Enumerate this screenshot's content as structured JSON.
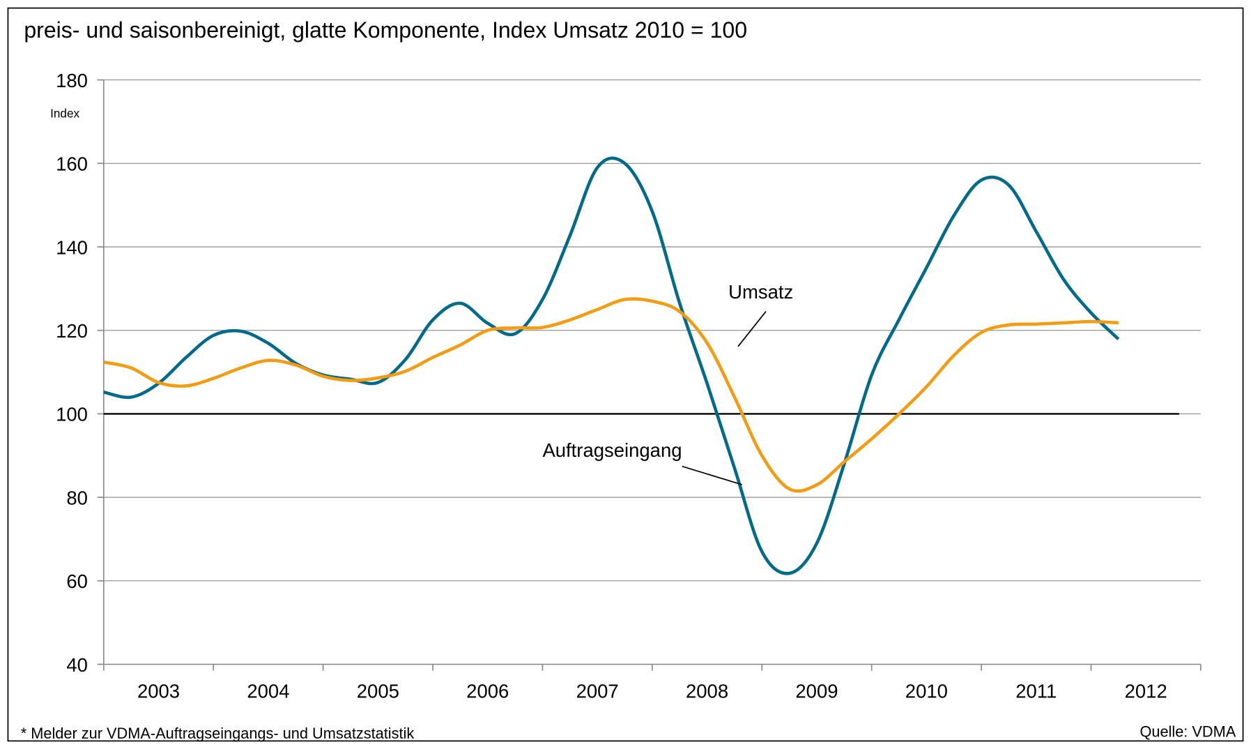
{
  "chart_data": {
    "type": "line",
    "title": "preis- und saisonbereinigt, glatte Komponente, Index Umsatz 2010 = 100",
    "y_label": "Index",
    "footnote": "* Melder zur VDMA-Auftragseingangs- und Umsatzstatistik",
    "source": "Quelle: VDMA",
    "categories": [
      "2003",
      "2004",
      "2005",
      "2006",
      "2007",
      "2008",
      "2009",
      "2010",
      "2011",
      "2012"
    ],
    "x": [
      2003,
      2003.25,
      2003.5,
      2003.75,
      2004,
      2004.25,
      2004.5,
      2004.75,
      2005,
      2005.25,
      2005.5,
      2005.75,
      2006,
      2006.25,
      2006.5,
      2006.75,
      2007,
      2007.25,
      2007.5,
      2007.75,
      2008,
      2008.25,
      2008.5,
      2008.75,
      2009,
      2009.25,
      2009.5,
      2009.75,
      2010,
      2010.25,
      2010.5,
      2010.75,
      2011,
      2011.25,
      2011.5,
      2011.75,
      2012,
      2012.25
    ],
    "series": [
      {
        "name": "Auftragseingang",
        "color": "#006a8a",
        "values": [
          105.2,
          104,
          107.3,
          113.5,
          118.8,
          119.8,
          116.9,
          112.1,
          109.3,
          108.3,
          107.5,
          113,
          122.5,
          126.5,
          121.7,
          119.2,
          127.4,
          142.7,
          159,
          160,
          148.5,
          126.5,
          107.3,
          87,
          67,
          61.8,
          69,
          88,
          109.3,
          122.6,
          135,
          147.5,
          156,
          154.8,
          143.7,
          132.2,
          124.2,
          117.9
        ]
      },
      {
        "name": "Umsatz",
        "color": "#f39c12",
        "values": [
          112.4,
          111,
          107.5,
          106.7,
          108.5,
          111,
          112.8,
          111.7,
          109,
          108,
          108.6,
          110.2,
          113.5,
          116.5,
          120,
          120.6,
          120.7,
          122.5,
          125,
          127.4,
          127,
          124.5,
          117,
          104,
          90,
          82,
          83,
          88.5,
          94,
          100,
          106.5,
          114,
          119.5,
          121.3,
          121.5,
          121.8,
          122.1,
          121.8
        ]
      }
    ],
    "reference_line": 100,
    "xlim": [
      2003,
      2013
    ],
    "xticks": [
      2003,
      2004,
      2005,
      2006,
      2007,
      2008,
      2009,
      2010,
      2011,
      2012,
      2013
    ],
    "ylim": [
      40,
      180
    ],
    "yticks": [
      40,
      60,
      80,
      100,
      120,
      140,
      160,
      180
    ],
    "grid": true
  }
}
